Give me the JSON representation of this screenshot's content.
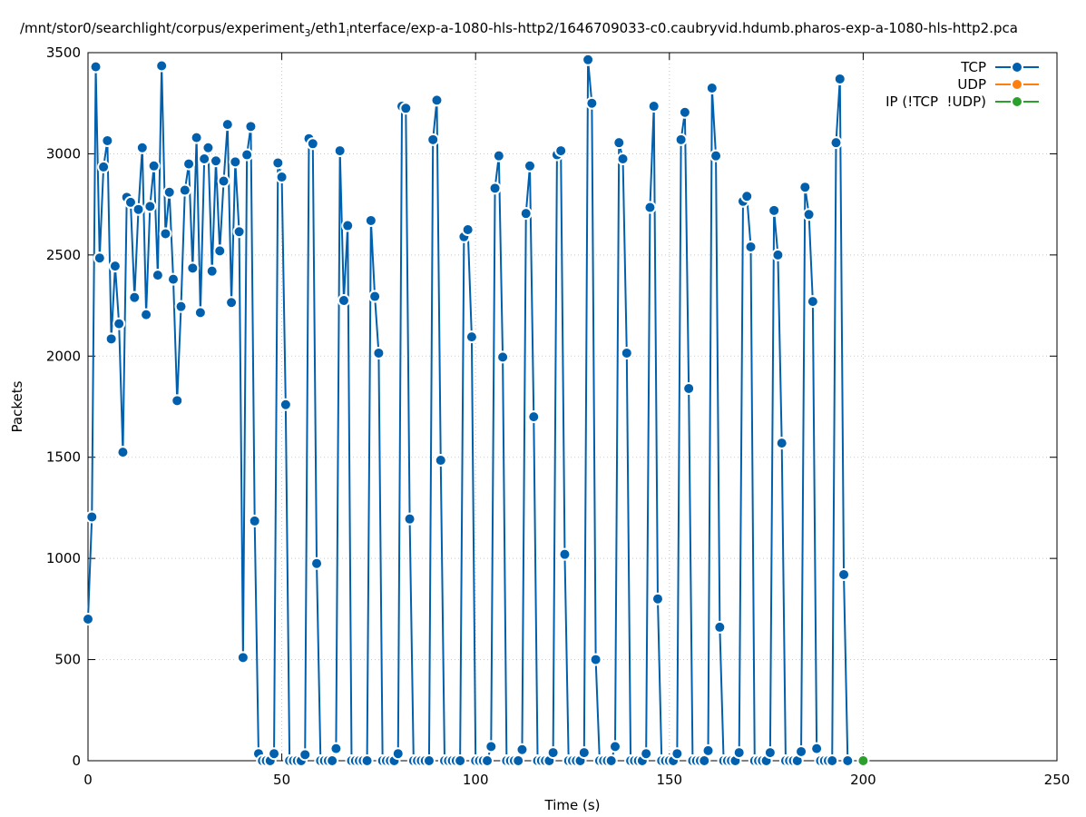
{
  "chart_data": {
    "type": "line",
    "title": [
      "/mnt/stor0/searchlight/corpus/experiment",
      "3",
      "/eth1",
      "i",
      "nterface/exp-a-1080-hls-http2/1646709033-c0.caubryvid.hdumb.pharos-exp-a-1080-hls-http2.pca"
    ],
    "x_label": "Time (s)",
    "y_label": "Packets",
    "xlim": [
      0,
      250
    ],
    "xticks": [
      0,
      50,
      100,
      150,
      200,
      250
    ],
    "ylim": [
      0,
      3500
    ],
    "yticks": [
      0,
      500,
      1000,
      1500,
      2000,
      2500,
      3000,
      3500
    ],
    "grid": true,
    "legend": "top-right",
    "series": [
      {
        "name": "TCP",
        "color": "#0060ad",
        "x": [
          0,
          1,
          2,
          3,
          4,
          5,
          6,
          7,
          8,
          9,
          10,
          11,
          12,
          13,
          14,
          15,
          16,
          17,
          18,
          19,
          20,
          21,
          22,
          23,
          24,
          25,
          26,
          27,
          28,
          29,
          30,
          31,
          32,
          33,
          34,
          35,
          36,
          37,
          38,
          39,
          40,
          41,
          42,
          43,
          44,
          45,
          46,
          47,
          48,
          49,
          50,
          51,
          52,
          53,
          54,
          55,
          56,
          57,
          58,
          59,
          60,
          61,
          62,
          63,
          64,
          65,
          66,
          67,
          68,
          69,
          70,
          71,
          72,
          73,
          74,
          75,
          76,
          77,
          78,
          79,
          80,
          81,
          82,
          83,
          84,
          85,
          86,
          87,
          88,
          89,
          90,
          91,
          92,
          93,
          94,
          95,
          96,
          97,
          98,
          99,
          100,
          101,
          102,
          103,
          104,
          105,
          106,
          107,
          108,
          109,
          110,
          111,
          112,
          113,
          114,
          115,
          116,
          117,
          118,
          119,
          120,
          121,
          122,
          123,
          124,
          125,
          126,
          127,
          128,
          129,
          130,
          131,
          132,
          133,
          134,
          135,
          136,
          137,
          138,
          139,
          140,
          141,
          142,
          143,
          144,
          145,
          146,
          147,
          148,
          149,
          150,
          151,
          152,
          153,
          154,
          155,
          156,
          157,
          158,
          159,
          160,
          161,
          162,
          163,
          164,
          165,
          166,
          167,
          168,
          169,
          170,
          171,
          172,
          173,
          174,
          175,
          176,
          177,
          178,
          179,
          180,
          181,
          182,
          183,
          184,
          185,
          186,
          187,
          188,
          189,
          190,
          191,
          192,
          193,
          194,
          195,
          196
        ],
        "values": [
          700,
          1205,
          3430,
          2485,
          2935,
          3065,
          2085,
          2445,
          2160,
          1525,
          2785,
          2760,
          2290,
          2725,
          3030,
          2205,
          2740,
          2940,
          2400,
          3435,
          2605,
          2810,
          2380,
          1780,
          2245,
          2820,
          2950,
          2435,
          3080,
          2215,
          2975,
          3030,
          2420,
          2965,
          2520,
          2865,
          3145,
          2265,
          2960,
          2615,
          510,
          2995,
          3135,
          1185,
          35,
          0,
          0,
          0,
          35,
          2955,
          2885,
          1760,
          0,
          0,
          0,
          0,
          30,
          3075,
          3050,
          975,
          0,
          0,
          0,
          0,
          60,
          3015,
          2275,
          2645,
          0,
          0,
          0,
          0,
          0,
          2670,
          2295,
          2015,
          0,
          0,
          0,
          0,
          35,
          3235,
          3225,
          1195,
          0,
          0,
          0,
          0,
          0,
          3070,
          3265,
          1485,
          0,
          0,
          0,
          0,
          0,
          2590,
          2625,
          2095,
          0,
          0,
          0,
          0,
          70,
          2830,
          2990,
          1995,
          0,
          0,
          0,
          0,
          55,
          2705,
          2940,
          1700,
          0,
          0,
          0,
          0,
          40,
          2995,
          3015,
          1020,
          0,
          0,
          0,
          0,
          40,
          3465,
          3250,
          500,
          0,
          0,
          0,
          0,
          70,
          3055,
          2975,
          2015,
          0,
          0,
          0,
          0,
          35,
          2735,
          3235,
          800,
          0,
          0,
          0,
          0,
          35,
          3070,
          3205,
          1840,
          0,
          0,
          0,
          0,
          50,
          3325,
          2990,
          660,
          0,
          0,
          0,
          0,
          40,
          2765,
          2790,
          2540,
          0,
          0,
          0,
          0,
          40,
          2720,
          2500,
          1570,
          0,
          0,
          0,
          0,
          45,
          2835,
          2700,
          2270,
          60,
          0,
          0,
          0,
          0,
          3055,
          3370,
          920,
          0
        ]
      },
      {
        "name": "UDP",
        "color": "#ff7f0e",
        "x": [],
        "values": []
      },
      {
        "name": "IP (!TCP  !UDP)",
        "color": "#2ca02c",
        "x": [
          200
        ],
        "values": [
          0
        ]
      }
    ]
  }
}
